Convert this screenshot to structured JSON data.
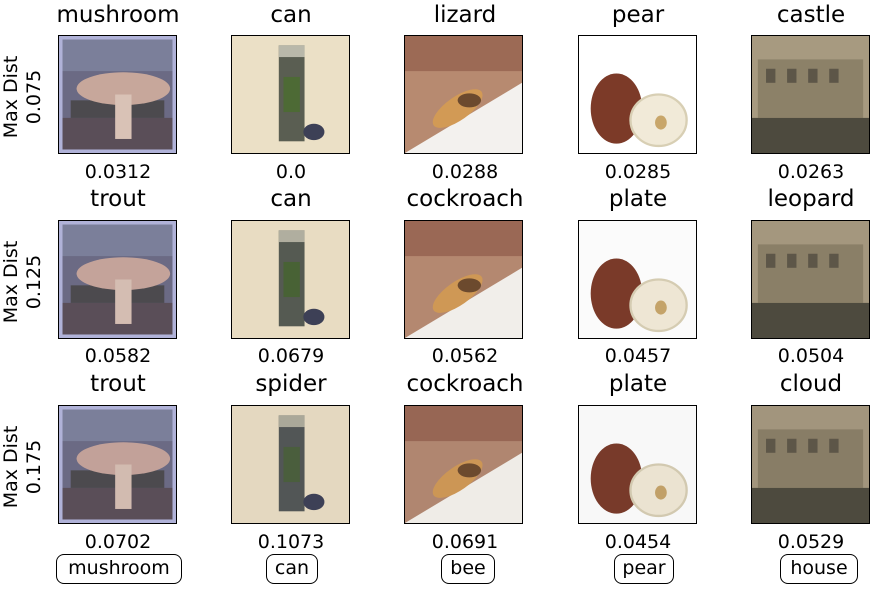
{
  "rows": [
    {
      "label_line1": "Max Dist",
      "label_line2": "0.075",
      "cells": [
        {
          "pred": "mushroom",
          "dist": "0.0312"
        },
        {
          "pred": "can",
          "dist": "0.0"
        },
        {
          "pred": "lizard",
          "dist": "0.0288"
        },
        {
          "pred": "pear",
          "dist": "0.0285"
        },
        {
          "pred": "castle",
          "dist": "0.0263"
        }
      ]
    },
    {
      "label_line1": "Max Dist",
      "label_line2": "0.125",
      "cells": [
        {
          "pred": "trout",
          "dist": "0.0582"
        },
        {
          "pred": "can",
          "dist": "0.0679"
        },
        {
          "pred": "cockroach",
          "dist": "0.0562"
        },
        {
          "pred": "plate",
          "dist": "0.0457"
        },
        {
          "pred": "leopard",
          "dist": "0.0504"
        }
      ]
    },
    {
      "label_line1": "Max Dist",
      "label_line2": "0.175",
      "cells": [
        {
          "pred": "trout",
          "dist": "0.0702"
        },
        {
          "pred": "spider",
          "dist": "0.1073"
        },
        {
          "pred": "cockroach",
          "dist": "0.0691"
        },
        {
          "pred": "plate",
          "dist": "0.0454"
        },
        {
          "pred": "cloud",
          "dist": "0.0529"
        }
      ]
    }
  ],
  "true_labels": [
    "mushroom",
    "can",
    "bee",
    "pear",
    "house"
  ]
}
